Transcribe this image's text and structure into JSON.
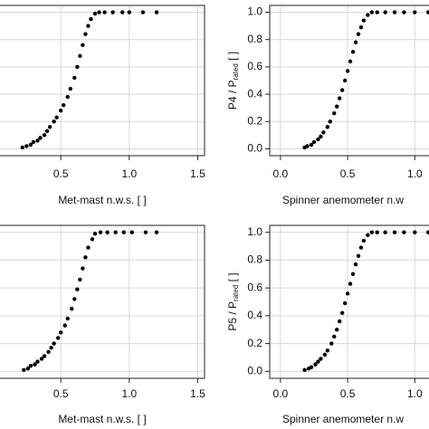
{
  "chart_data": [
    {
      "type": "scatter",
      "xlabel": "Met-mast n.w.s. [ ]",
      "color": "#000000",
      "grid": true,
      "xlim": [
        -0.05,
        1.55
      ],
      "ylim": [
        -0.05,
        1.05
      ],
      "xticks": [
        {
          "value": 0.5,
          "label": "0.5"
        },
        {
          "value": 1.0,
          "label": "1.0"
        },
        {
          "value": 1.5,
          "label": "1.5"
        }
      ],
      "ygrid": [
        0,
        0.2,
        0.4,
        0.6,
        0.8,
        1
      ],
      "x": [
        0.22,
        0.25,
        0.28,
        0.3,
        0.33,
        0.35,
        0.38,
        0.4,
        0.42,
        0.45,
        0.47,
        0.5,
        0.52,
        0.55,
        0.57,
        0.6,
        0.62,
        0.64,
        0.66,
        0.68,
        0.7,
        0.72,
        0.75,
        0.78,
        0.82,
        0.88,
        0.95,
        1.0,
        1.1,
        1.2
      ],
      "y": [
        0.01,
        0.02,
        0.03,
        0.05,
        0.06,
        0.08,
        0.1,
        0.13,
        0.16,
        0.2,
        0.23,
        0.28,
        0.32,
        0.38,
        0.44,
        0.52,
        0.6,
        0.68,
        0.76,
        0.84,
        0.9,
        0.95,
        0.99,
        1.0,
        1.0,
        1.0,
        1.0,
        1.0,
        1.0,
        1.0
      ]
    },
    {
      "type": "scatter",
      "xlabel": "Spinner anemometer n.w",
      "ylabel": {
        "main": "P4 / P",
        "sub": "rated",
        "end": " [ ]"
      },
      "color": "#000000",
      "grid": true,
      "xlim": [
        -0.08,
        1.2
      ],
      "ylim": [
        -0.05,
        1.05
      ],
      "xticks": [
        {
          "value": 0.0,
          "label": "0.0"
        },
        {
          "value": 0.5,
          "label": "0.5"
        },
        {
          "value": 1.0,
          "label": "1.0"
        }
      ],
      "yticks": [
        {
          "value": 0,
          "label": "0.0"
        },
        0.2,
        0.4,
        0.6,
        0.8,
        {
          "value": 1,
          "label": "1.0"
        }
      ],
      "x": [
        0.18,
        0.2,
        0.23,
        0.25,
        0.28,
        0.3,
        0.32,
        0.35,
        0.37,
        0.4,
        0.42,
        0.44,
        0.46,
        0.48,
        0.5,
        0.52,
        0.54,
        0.56,
        0.58,
        0.6,
        0.62,
        0.65,
        0.68,
        0.72,
        0.78,
        0.85,
        0.92,
        1.0,
        1.1
      ],
      "y": [
        0.01,
        0.02,
        0.03,
        0.05,
        0.07,
        0.09,
        0.12,
        0.16,
        0.2,
        0.26,
        0.31,
        0.37,
        0.43,
        0.5,
        0.57,
        0.64,
        0.71,
        0.78,
        0.84,
        0.89,
        0.94,
        0.98,
        1.0,
        1.0,
        1.0,
        1.0,
        1.0,
        1.0,
        1.0
      ]
    },
    {
      "type": "scatter",
      "xlabel": "Met-mast n.w.s. [ ]",
      "color": "#000000",
      "grid": true,
      "xlim": [
        -0.05,
        1.55
      ],
      "ylim": [
        -0.05,
        1.05
      ],
      "xticks": [
        {
          "value": 0.5,
          "label": "0.5"
        },
        {
          "value": 1.0,
          "label": "1.0"
        },
        {
          "value": 1.5,
          "label": "1.5"
        }
      ],
      "ygrid": [
        0,
        0.2,
        0.4,
        0.6,
        0.8,
        1
      ],
      "x": [
        0.23,
        0.26,
        0.28,
        0.31,
        0.33,
        0.36,
        0.38,
        0.41,
        0.43,
        0.45,
        0.48,
        0.5,
        0.53,
        0.55,
        0.58,
        0.6,
        0.62,
        0.64,
        0.66,
        0.68,
        0.7,
        0.73,
        0.75,
        0.79,
        0.84,
        0.9,
        0.96,
        1.02,
        1.12,
        1.2
      ],
      "y": [
        0.01,
        0.02,
        0.04,
        0.05,
        0.07,
        0.09,
        0.11,
        0.14,
        0.17,
        0.2,
        0.24,
        0.28,
        0.33,
        0.38,
        0.45,
        0.52,
        0.59,
        0.66,
        0.74,
        0.82,
        0.89,
        0.95,
        0.99,
        1.0,
        1.0,
        1.0,
        1.0,
        1.0,
        1.0,
        1.0
      ]
    },
    {
      "type": "scatter",
      "xlabel": "Spinner anemometer n.w",
      "ylabel": {
        "main": "P5 / P",
        "sub": "rated",
        "end": " [ ]"
      },
      "color": "#000000",
      "grid": true,
      "xlim": [
        -0.08,
        1.2
      ],
      "ylim": [
        -0.05,
        1.05
      ],
      "xticks": [
        {
          "value": 0.0,
          "label": "0.0"
        },
        {
          "value": 0.5,
          "label": "0.5"
        },
        {
          "value": 1.0,
          "label": "1.0"
        }
      ],
      "yticks": [
        {
          "value": 0,
          "label": "0.0"
        },
        0.2,
        0.4,
        0.6,
        0.8,
        {
          "value": 1,
          "label": "1.0"
        }
      ],
      "x": [
        0.18,
        0.21,
        0.23,
        0.26,
        0.28,
        0.3,
        0.33,
        0.35,
        0.38,
        0.4,
        0.42,
        0.44,
        0.46,
        0.48,
        0.5,
        0.52,
        0.54,
        0.56,
        0.58,
        0.6,
        0.62,
        0.65,
        0.68,
        0.72,
        0.78,
        0.85,
        0.92,
        1.0,
        1.1
      ],
      "y": [
        0.01,
        0.02,
        0.03,
        0.05,
        0.07,
        0.09,
        0.12,
        0.15,
        0.2,
        0.25,
        0.3,
        0.36,
        0.42,
        0.49,
        0.56,
        0.63,
        0.7,
        0.77,
        0.83,
        0.89,
        0.94,
        0.98,
        1.0,
        1.0,
        1.0,
        1.0,
        1.0,
        1.0,
        1.0
      ]
    }
  ]
}
